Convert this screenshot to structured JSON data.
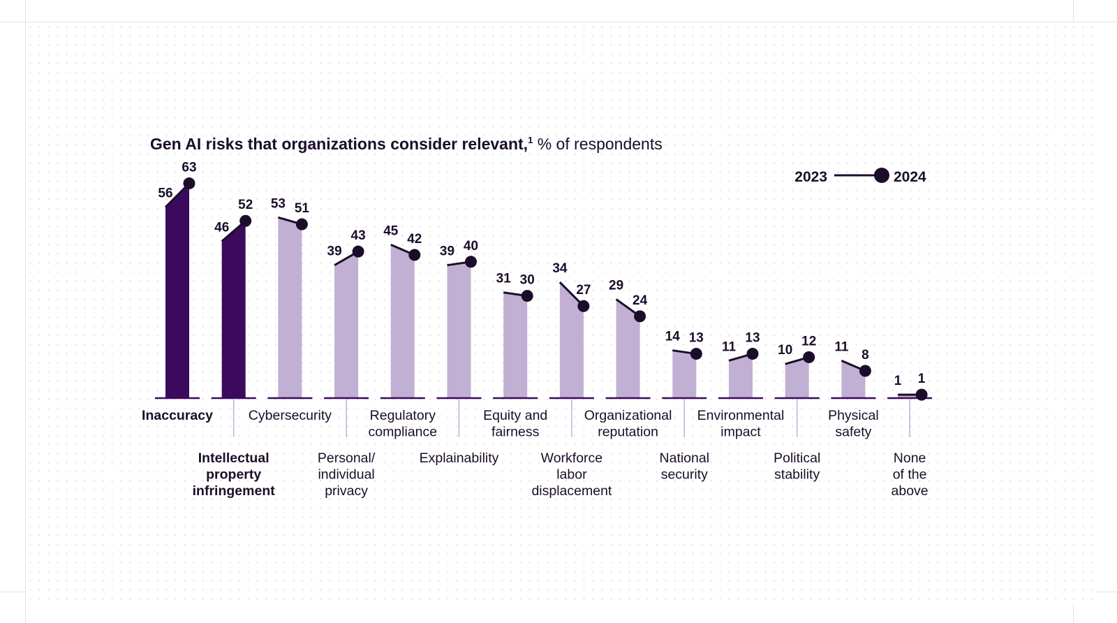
{
  "chart_data": {
    "type": "bar",
    "title_bold": "Gen AI risks that organizations consider relevant,",
    "title_sup": "1",
    "title_rest": " % of respondents",
    "legend": {
      "from": "2023",
      "to": "2024"
    },
    "ylim": [
      0,
      63
    ],
    "categories": [
      {
        "label": [
          "Inaccuracy"
        ],
        "bold": true,
        "highlight": true,
        "v2023": 56,
        "v2024": 63
      },
      {
        "label": [
          "Intellectual",
          "property",
          "infringement"
        ],
        "bold": true,
        "highlight": true,
        "v2023": 46,
        "v2024": 52
      },
      {
        "label": [
          "Cybersecurity"
        ],
        "bold": false,
        "highlight": false,
        "v2023": 53,
        "v2024": 51
      },
      {
        "label": [
          "Personal/",
          "individual",
          "privacy"
        ],
        "bold": false,
        "highlight": false,
        "v2023": 39,
        "v2024": 43
      },
      {
        "label": [
          "Regulatory",
          "compliance"
        ],
        "bold": false,
        "highlight": false,
        "v2023": 45,
        "v2024": 42
      },
      {
        "label": [
          "Explainability"
        ],
        "bold": false,
        "highlight": false,
        "v2023": 39,
        "v2024": 40
      },
      {
        "label": [
          "Equity and",
          "fairness"
        ],
        "bold": false,
        "highlight": false,
        "v2023": 31,
        "v2024": 30
      },
      {
        "label": [
          "Workforce",
          "labor",
          "displacement"
        ],
        "bold": false,
        "highlight": false,
        "v2023": 34,
        "v2024": 27
      },
      {
        "label": [
          "Organizational",
          "reputation"
        ],
        "bold": false,
        "highlight": false,
        "v2023": 29,
        "v2024": 24
      },
      {
        "label": [
          "National",
          "security"
        ],
        "bold": false,
        "highlight": false,
        "v2023": 14,
        "v2024": 13
      },
      {
        "label": [
          "Environmental",
          "impact"
        ],
        "bold": false,
        "highlight": false,
        "v2023": 11,
        "v2024": 13
      },
      {
        "label": [
          "Political",
          "stability"
        ],
        "bold": false,
        "highlight": false,
        "v2023": 10,
        "v2024": 12
      },
      {
        "label": [
          "Physical",
          "safety"
        ],
        "bold": false,
        "highlight": false,
        "v2023": 11,
        "v2024": 8
      },
      {
        "label": [
          "None",
          "of the",
          "above"
        ],
        "bold": false,
        "highlight": false,
        "v2023": 1,
        "v2024": 1
      }
    ],
    "colors": {
      "highlight": "#3b0a5c",
      "normal": "#c1afd4",
      "ink": "#1b0d2a",
      "axis": "#3b0a5c"
    },
    "grid": false,
    "legend_position": "top-right"
  }
}
